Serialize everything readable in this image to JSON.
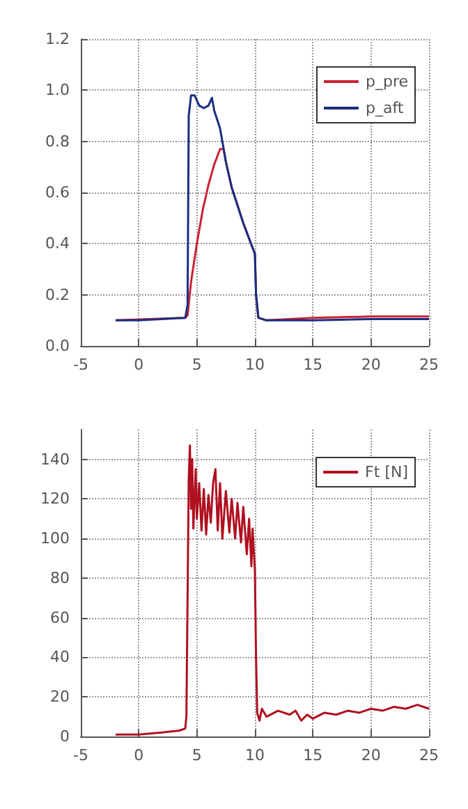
{
  "chart_data": [
    {
      "type": "line",
      "xlim": [
        -5,
        25
      ],
      "xticks": [
        -5,
        0,
        5,
        10,
        15,
        20,
        25
      ],
      "ylim": [
        0,
        1.2
      ],
      "yticks": [
        {
          "value": 0,
          "label": "0.0"
        },
        0.2,
        0.4,
        0.6,
        0.8,
        {
          "value": 1,
          "label": "1.0"
        },
        1.2
      ],
      "grid": true,
      "legend": "top right",
      "marker": "none",
      "line_style": "solid",
      "series": [
        {
          "name": "p_pre",
          "color": "#cc2233",
          "x": [
            -2,
            4,
            4.2,
            4.5,
            5,
            5.5,
            6,
            6.5,
            7,
            7.3,
            7.5,
            8,
            8.5,
            9,
            9.5,
            10,
            10.1,
            10.3,
            11,
            15,
            20,
            25
          ],
          "values": [
            0.1,
            0.11,
            0.12,
            0.25,
            0.4,
            0.53,
            0.63,
            0.71,
            0.77,
            0.77,
            0.72,
            0.62,
            0.55,
            0.48,
            0.42,
            0.36,
            0.2,
            0.11,
            0.1,
            0.11,
            0.115,
            0.115
          ]
        },
        {
          "name": "p_aft",
          "color": "#1a2e80",
          "x": [
            -2,
            0,
            4,
            4.2,
            4.3,
            4.5,
            4.8,
            5.2,
            5.6,
            6,
            6.3,
            6.5,
            7,
            7.5,
            8,
            8.5,
            9,
            9.5,
            10,
            10.1,
            10.3,
            11,
            15,
            20,
            25
          ],
          "values": [
            0.1,
            0.1,
            0.11,
            0.16,
            0.9,
            0.98,
            0.98,
            0.94,
            0.93,
            0.94,
            0.97,
            0.92,
            0.85,
            0.72,
            0.62,
            0.55,
            0.48,
            0.42,
            0.36,
            0.2,
            0.11,
            0.1,
            0.1,
            0.105,
            0.105
          ]
        }
      ]
    },
    {
      "type": "line",
      "xlim": [
        -5,
        25
      ],
      "xticks": [
        -5,
        0,
        5,
        10,
        15,
        20,
        25
      ],
      "ylim": [
        0,
        155
      ],
      "yticks": [
        0,
        20,
        40,
        60,
        80,
        100,
        120,
        140
      ],
      "grid": true,
      "legend": "top right",
      "marker": "none",
      "line_style": "solid",
      "series": [
        {
          "name": "Ft [N]",
          "color": "#b01020",
          "x": [
            -2,
            0,
            2,
            3.5,
            4,
            4.1,
            4.2,
            4.3,
            4.4,
            4.5,
            4.6,
            4.7,
            4.9,
            5,
            5.2,
            5.4,
            5.6,
            5.8,
            6,
            6.2,
            6.4,
            6.6,
            6.8,
            7,
            7.2,
            7.5,
            7.8,
            8,
            8.3,
            8.5,
            8.8,
            9,
            9.3,
            9.5,
            9.7,
            9.8,
            10,
            10.1,
            10.2,
            10.4,
            10.6,
            11,
            12,
            13,
            13.5,
            14,
            14.5,
            15,
            16,
            17,
            18,
            19,
            20,
            21,
            22,
            23,
            24,
            25
          ],
          "values": [
            1,
            1,
            2,
            3,
            4,
            10,
            70,
            130,
            147,
            115,
            140,
            105,
            135,
            110,
            128,
            104,
            125,
            102,
            122,
            108,
            128,
            135,
            104,
            128,
            100,
            124,
            103,
            120,
            100,
            118,
            98,
            116,
            92,
            110,
            86,
            105,
            84,
            40,
            12,
            8,
            14,
            10,
            13,
            11,
            13,
            8,
            11,
            9,
            12,
            11,
            13,
            12,
            14,
            13,
            15,
            14,
            16,
            14
          ]
        }
      ]
    }
  ]
}
